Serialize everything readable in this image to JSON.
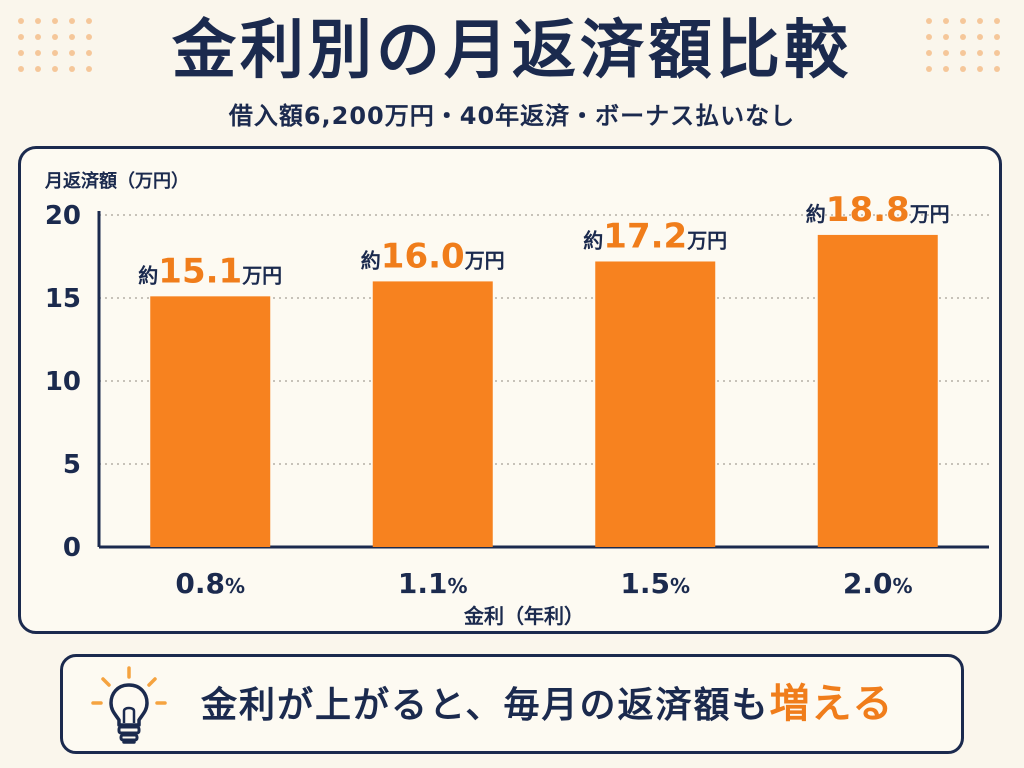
{
  "title": "金利別の月返済額比較",
  "subtitle": "借入額6,200万円・40年返済・ボーナス払いなし",
  "callout": {
    "text": "金利が上がると、毎月の返済額も",
    "emphasis": "増える",
    "icon": "lightbulb-icon"
  },
  "colors": {
    "bar": "#f7821f",
    "value_highlight": "#f07d1b",
    "navy": "#1b2a4e",
    "background": "#faf6ec"
  },
  "chart_data": {
    "type": "bar",
    "ylabel": "月返済額（万円）",
    "xlabel": "金利（年利）",
    "ylim": [
      0,
      20
    ],
    "yticks": [
      "0",
      "5",
      "10",
      "15",
      "20"
    ],
    "grid": true,
    "categories": [
      "0.8%",
      "1.1%",
      "1.5%",
      "2.0%"
    ],
    "values": [
      15.1,
      16.0,
      17.2,
      18.8
    ],
    "value_labels": [
      "15.1",
      "16.0",
      "17.2",
      "18.8"
    ],
    "label_prefix": "約",
    "label_suffix": "万円"
  }
}
